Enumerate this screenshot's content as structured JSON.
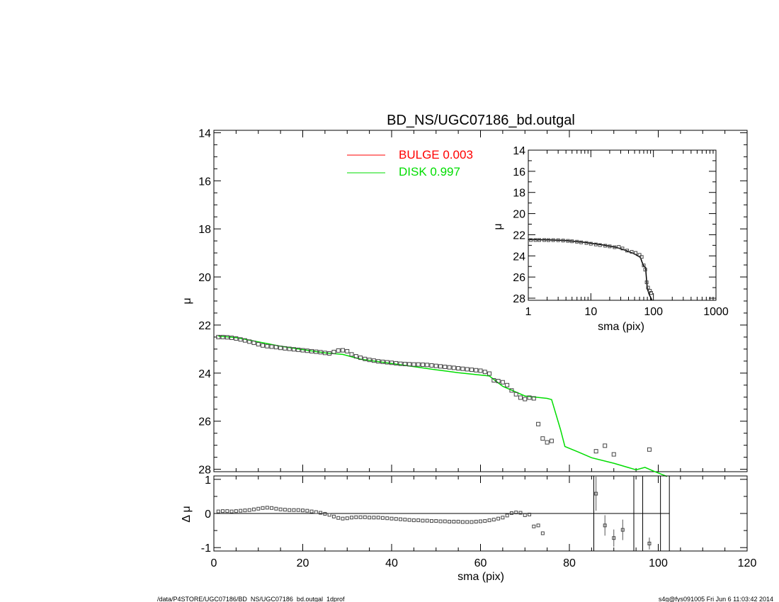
{
  "title": "BD_NS/UGC07186_bd.outgal",
  "footer": {
    "left": "/data/P4STORE/UGC07186/BD_NS/UGC07186_bd.outgal_1dprof",
    "right": "s4g@fys091005  Fri Jun  6 11:03:42 2014"
  },
  "colors": {
    "bulge": "#ff0000",
    "disk": "#00dd00",
    "data": "#555555",
    "axes": "#000000"
  },
  "chart_data": [
    {
      "type": "scatter",
      "name_key": "main",
      "xlim": [
        0,
        120
      ],
      "ylim": [
        28.1,
        13.9
      ],
      "ylabel": "μ",
      "yticks": [
        14,
        16,
        18,
        20,
        22,
        24,
        26,
        28
      ],
      "legend": [
        {
          "label": "BULGE  0.003",
          "color": "#ff0000"
        },
        {
          "label": "DISK  0.997",
          "color": "#00dd00"
        }
      ],
      "series": [
        {
          "name": "data",
          "points": [
            [
              1,
              22.5
            ],
            [
              2,
              22.5
            ],
            [
              3,
              22.51
            ],
            [
              4,
              22.53
            ],
            [
              5,
              22.56
            ],
            [
              6,
              22.6
            ],
            [
              7,
              22.64
            ],
            [
              8,
              22.69
            ],
            [
              9,
              22.74
            ],
            [
              10,
              22.8
            ],
            [
              11,
              22.85
            ],
            [
              12,
              22.88
            ],
            [
              13,
              22.9
            ],
            [
              14,
              22.92
            ],
            [
              15,
              22.95
            ],
            [
              16,
              22.97
            ],
            [
              17,
              22.99
            ],
            [
              18,
              23.01
            ],
            [
              19,
              23.03
            ],
            [
              20,
              23.05
            ],
            [
              21,
              23.07
            ],
            [
              22,
              23.09
            ],
            [
              23,
              23.11
            ],
            [
              24,
              23.13
            ],
            [
              25,
              23.16
            ],
            [
              26,
              23.18
            ],
            [
              27,
              23.12
            ],
            [
              28,
              23.06
            ],
            [
              29,
              23.05
            ],
            [
              30,
              23.09
            ],
            [
              31,
              23.22
            ],
            [
              32,
              23.3
            ],
            [
              33,
              23.36
            ],
            [
              34,
              23.41
            ],
            [
              35,
              23.45
            ],
            [
              36,
              23.48
            ],
            [
              37,
              23.51
            ],
            [
              38,
              23.53
            ],
            [
              39,
              23.55
            ],
            [
              40,
              23.57
            ],
            [
              41,
              23.59
            ],
            [
              42,
              23.61
            ],
            [
              43,
              23.62
            ],
            [
              44,
              23.63
            ],
            [
              45,
              23.64
            ],
            [
              46,
              23.64
            ],
            [
              47,
              23.65
            ],
            [
              48,
              23.66
            ],
            [
              49,
              23.68
            ],
            [
              50,
              23.7
            ],
            [
              51,
              23.72
            ],
            [
              52,
              23.74
            ],
            [
              53,
              23.76
            ],
            [
              54,
              23.78
            ],
            [
              55,
              23.8
            ],
            [
              56,
              23.82
            ],
            [
              57,
              23.84
            ],
            [
              58,
              23.86
            ],
            [
              59,
              23.88
            ],
            [
              60,
              23.9
            ],
            [
              61,
              23.95
            ],
            [
              62,
              24.02
            ],
            [
              63,
              24.3
            ],
            [
              64,
              24.33
            ],
            [
              65,
              24.38
            ],
            [
              66,
              24.5
            ],
            [
              67,
              24.72
            ],
            [
              68,
              24.88
            ],
            [
              69,
              25.02
            ],
            [
              70,
              25.08
            ],
            [
              71,
              25.02
            ],
            [
              72,
              25.05
            ],
            [
              73,
              26.12
            ],
            [
              74,
              26.72
            ],
            [
              75,
              26.88
            ],
            [
              76,
              26.82
            ],
            [
              86,
              27.25
            ],
            [
              88,
              27.02
            ],
            [
              90,
              27.38
            ],
            [
              98,
              27.18
            ]
          ]
        },
        {
          "name": "disk",
          "points": [
            [
              1,
              22.46
            ],
            [
              5,
              22.52
            ],
            [
              10,
              22.7
            ],
            [
              15,
              22.88
            ],
            [
              20,
              23.02
            ],
            [
              25,
              23.16
            ],
            [
              29,
              23.22
            ],
            [
              33,
              23.42
            ],
            [
              40,
              23.6
            ],
            [
              50,
              23.86
            ],
            [
              55,
              23.98
            ],
            [
              62,
              24.12
            ],
            [
              65,
              24.55
            ],
            [
              70,
              24.95
            ],
            [
              75,
              25.05
            ],
            [
              76,
              25.1
            ],
            [
              78,
              26.35
            ],
            [
              79,
              27.05
            ],
            [
              82,
              27.28
            ],
            [
              85,
              27.52
            ],
            [
              90,
              27.75
            ],
            [
              95,
              28.02
            ],
            [
              97,
              27.92
            ],
            [
              99,
              28.08
            ],
            [
              102,
              28.3
            ]
          ]
        },
        {
          "name": "bulge",
          "points": []
        }
      ]
    },
    {
      "type": "scatter",
      "name_key": "inset",
      "xscale": "log",
      "xlim": [
        1,
        1000
      ],
      "ylim": [
        28.2,
        14
      ],
      "xlabel": "sma (pix)",
      "ylabel": "μ",
      "xticks": [
        1,
        10,
        100,
        1000
      ],
      "yticks": [
        14,
        16,
        18,
        20,
        22,
        24,
        26,
        28
      ],
      "series": [
        {
          "name": "data",
          "points": [
            [
              1.1,
              22.5
            ],
            [
              1.3,
              22.5
            ],
            [
              1.5,
              22.5
            ],
            [
              1.8,
              22.5
            ],
            [
              2.1,
              22.51
            ],
            [
              2.5,
              22.51
            ],
            [
              3,
              22.52
            ],
            [
              3.6,
              22.55
            ],
            [
              4.3,
              22.58
            ],
            [
              5,
              22.62
            ],
            [
              6,
              22.66
            ],
            [
              7,
              22.72
            ],
            [
              8.5,
              22.78
            ],
            [
              10,
              22.85
            ],
            [
              12,
              22.92
            ],
            [
              14,
              22.98
            ],
            [
              17,
              23.04
            ],
            [
              20,
              23.1
            ],
            [
              24,
              23.18
            ],
            [
              28,
              23.15
            ],
            [
              32,
              23.3
            ],
            [
              38,
              23.5
            ],
            [
              45,
              23.62
            ],
            [
              52,
              23.72
            ],
            [
              60,
              23.9
            ],
            [
              65,
              24.1
            ],
            [
              70,
              24.9
            ],
            [
              74,
              25.3
            ],
            [
              78,
              26.5
            ],
            [
              82,
              27.0
            ],
            [
              88,
              27.3
            ],
            [
              92,
              27.5
            ]
          ]
        },
        {
          "name": "model",
          "points": [
            [
              1,
              22.46
            ],
            [
              2,
              22.48
            ],
            [
              4,
              22.55
            ],
            [
              8,
              22.72
            ],
            [
              15,
              22.95
            ],
            [
              25,
              23.18
            ],
            [
              35,
              23.45
            ],
            [
              50,
              23.82
            ],
            [
              62,
              24.15
            ],
            [
              66,
              24.6
            ],
            [
              70,
              24.96
            ],
            [
              75,
              25.1
            ],
            [
              78,
              26.4
            ],
            [
              80,
              27.1
            ],
            [
              85,
              27.6
            ],
            [
              95,
              28.2
            ]
          ]
        }
      ]
    },
    {
      "type": "scatter",
      "name_key": "residual",
      "xlim": [
        0,
        120
      ],
      "ylim": [
        -1.1,
        1.1
      ],
      "xlabel": "sma (pix)",
      "ylabel": "Δ μ",
      "xticks": [
        0,
        20,
        40,
        60,
        80,
        100,
        120
      ],
      "yticks": [
        -1,
        0,
        1
      ],
      "series": [
        {
          "name": "residuals",
          "points": [
            [
              1,
              0.06
            ],
            [
              2,
              0.07
            ],
            [
              3,
              0.07
            ],
            [
              4,
              0.06
            ],
            [
              5,
              0.07
            ],
            [
              6,
              0.08
            ],
            [
              7,
              0.09
            ],
            [
              8,
              0.1
            ],
            [
              9,
              0.12
            ],
            [
              10,
              0.14
            ],
            [
              11,
              0.16
            ],
            [
              12,
              0.17
            ],
            [
              13,
              0.16
            ],
            [
              14,
              0.14
            ],
            [
              15,
              0.12
            ],
            [
              16,
              0.11
            ],
            [
              17,
              0.1
            ],
            [
              18,
              0.1
            ],
            [
              19,
              0.1
            ],
            [
              20,
              0.09
            ],
            [
              21,
              0.08
            ],
            [
              22,
              0.06
            ],
            [
              23,
              0.04
            ],
            [
              24,
              0.02
            ],
            [
              25,
              -0.01
            ],
            [
              26,
              -0.04
            ],
            [
              27,
              -0.09
            ],
            [
              28,
              -0.13
            ],
            [
              29,
              -0.15
            ],
            [
              30,
              -0.14
            ],
            [
              31,
              -0.12
            ],
            [
              32,
              -0.11
            ],
            [
              33,
              -0.11
            ],
            [
              34,
              -0.11
            ],
            [
              35,
              -0.12
            ],
            [
              36,
              -0.12
            ],
            [
              37,
              -0.12
            ],
            [
              38,
              -0.13
            ],
            [
              39,
              -0.14
            ],
            [
              40,
              -0.15
            ],
            [
              41,
              -0.16
            ],
            [
              42,
              -0.17
            ],
            [
              43,
              -0.18
            ],
            [
              44,
              -0.19
            ],
            [
              45,
              -0.2
            ],
            [
              46,
              -0.2
            ],
            [
              47,
              -0.21
            ],
            [
              48,
              -0.21
            ],
            [
              49,
              -0.22
            ],
            [
              50,
              -0.22
            ],
            [
              51,
              -0.23
            ],
            [
              52,
              -0.23
            ],
            [
              53,
              -0.24
            ],
            [
              54,
              -0.24
            ],
            [
              55,
              -0.24
            ],
            [
              56,
              -0.25
            ],
            [
              57,
              -0.25
            ],
            [
              58,
              -0.25
            ],
            [
              59,
              -0.24
            ],
            [
              60,
              -0.23
            ],
            [
              61,
              -0.22
            ],
            [
              62,
              -0.2
            ],
            [
              63,
              -0.18
            ],
            [
              64,
              -0.15
            ],
            [
              65,
              -0.12
            ],
            [
              66,
              -0.06
            ],
            [
              67,
              0.01
            ],
            [
              68,
              0.03
            ],
            [
              69,
              0.02
            ],
            [
              70,
              -0.05
            ],
            [
              71,
              -0.03
            ],
            [
              72,
              -0.38
            ],
            [
              73,
              -0.35
            ],
            [
              74,
              -0.58
            ]
          ],
          "errbars": [
            [
              86,
              0.58,
              1.0
            ],
            [
              88,
              -0.35,
              0.6
            ],
            [
              90,
              -0.72,
              0.5
            ],
            [
              92,
              -0.48,
              0.6
            ],
            [
              98,
              -0.88,
              0.35
            ]
          ]
        }
      ],
      "vlines": [
        85.5,
        94.5,
        96.5,
        100.5,
        102.5
      ]
    }
  ]
}
